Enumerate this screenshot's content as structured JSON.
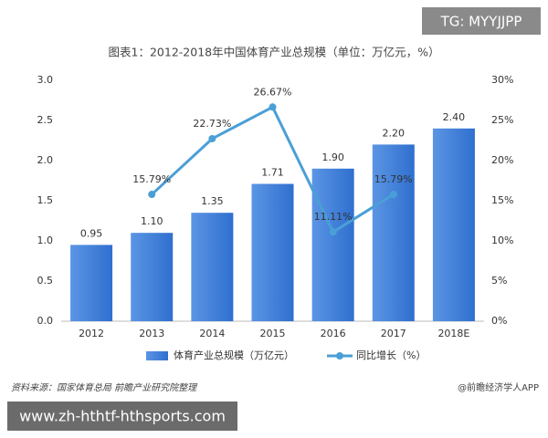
{
  "chart_data": {
    "type": "bar",
    "title": "图表1：2012-2018年中国体育产业总规模（单位：万亿元，%）",
    "categories": [
      "2012",
      "2013",
      "2014",
      "2015",
      "2016",
      "2017",
      "2018E"
    ],
    "series": [
      {
        "name": "体育产业总规模（万亿元）",
        "type": "bar",
        "color": "#3f7fd9",
        "values": [
          0.95,
          1.1,
          1.35,
          1.71,
          1.9,
          2.2,
          2.4
        ],
        "value_labels": [
          "0.95",
          "1.10",
          "1.35",
          "1.71",
          "1.90",
          "2.20",
          "2.40"
        ]
      },
      {
        "name": "同比增长（%）",
        "type": "line",
        "axis": "y2",
        "color": "#4a9fd6",
        "values": [
          null,
          15.79,
          22.73,
          26.67,
          11.11,
          15.79,
          null
        ],
        "value_labels": [
          null,
          "15.79%",
          "22.73%",
          "26.67%",
          "11.11%",
          "15.79%",
          null
        ]
      }
    ],
    "ylim": [
      0,
      3.0
    ],
    "yticks": [
      {
        "value": 0,
        "label": "0.0"
      },
      {
        "value": 0.5,
        "label": "0.5"
      },
      {
        "value": 1.0,
        "label": "1.0"
      },
      {
        "value": 1.5,
        "label": "1.5"
      },
      {
        "value": 2.0,
        "label": "2.0"
      },
      {
        "value": 2.5,
        "label": "2.5"
      },
      {
        "value": 3.0,
        "label": "3.0"
      }
    ],
    "y2lim": [
      0,
      30
    ],
    "y2ticks": [
      {
        "value": 0,
        "label": "0%"
      },
      {
        "value": 5,
        "label": "5%"
      },
      {
        "value": 10,
        "label": "10%"
      },
      {
        "value": 15,
        "label": "15%"
      },
      {
        "value": 20,
        "label": "20%"
      },
      {
        "value": 25,
        "label": "25%"
      },
      {
        "value": 30,
        "label": "30%"
      }
    ],
    "grid": false,
    "legend": "bottom",
    "source": "资料来源：国家体育总局 前瞻产业研究院整理",
    "credit": "@前瞻经济学人APP"
  },
  "overlay": {
    "tag": "TG: MYYJJPP",
    "url": "www.zh-hthtf-hthsports.com"
  }
}
